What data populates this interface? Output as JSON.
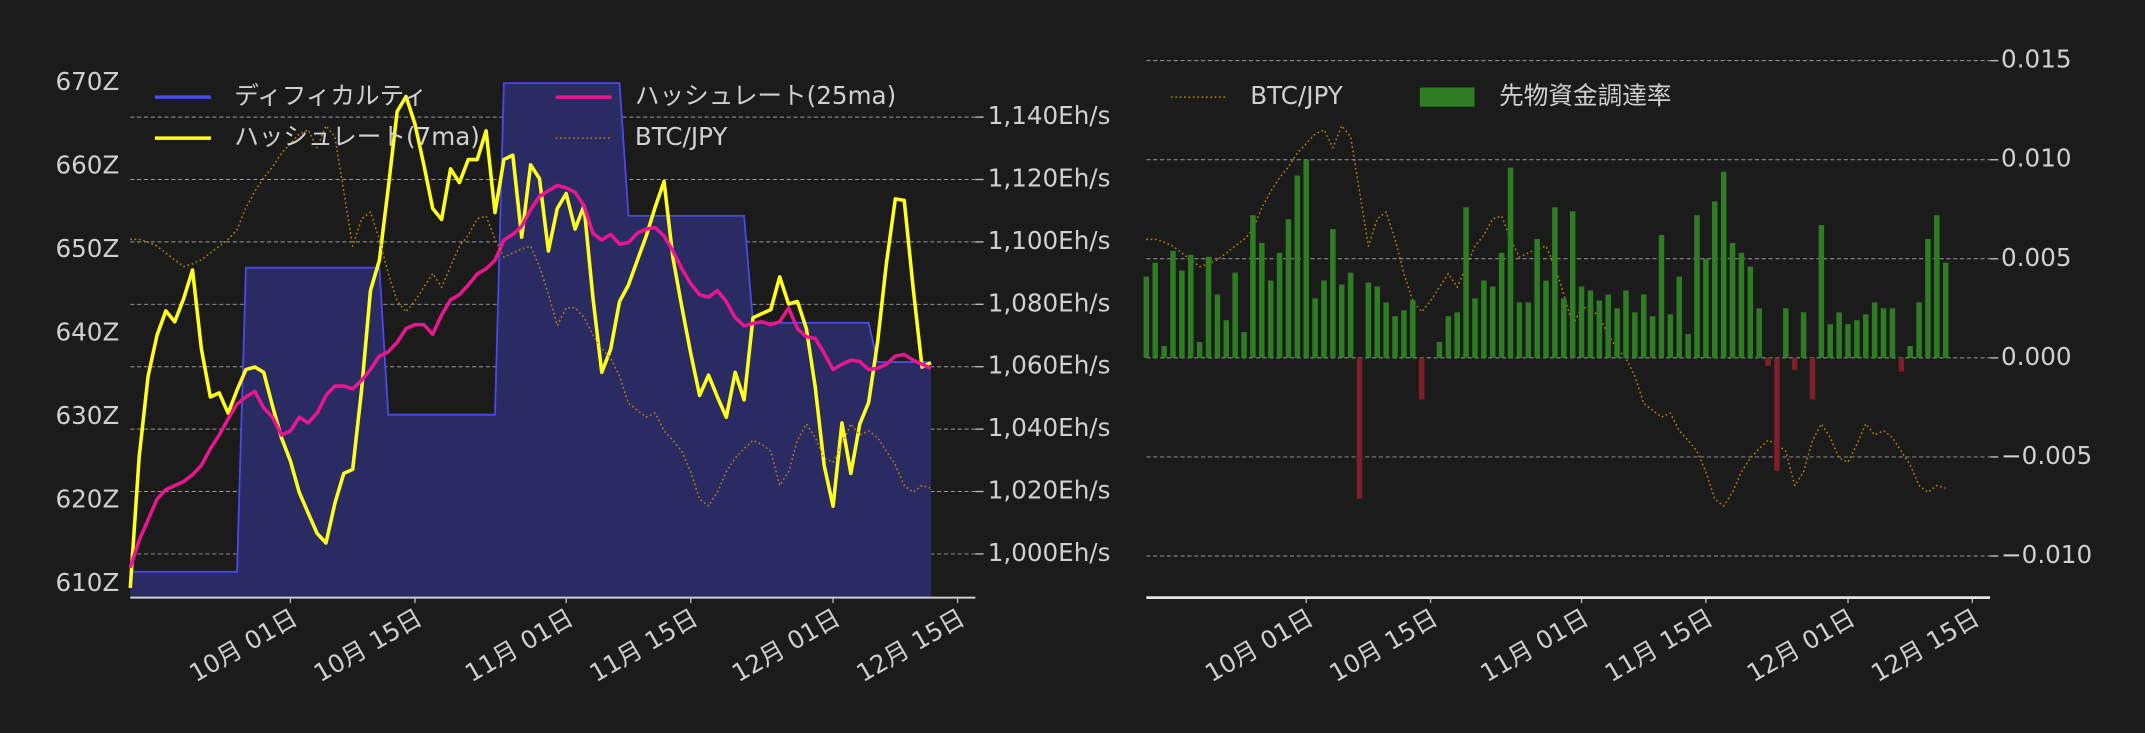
{
  "chart_data": [
    {
      "type": "line",
      "x": [
        "09-13",
        "09-14",
        "09-15",
        "09-16",
        "09-17",
        "09-18",
        "09-19",
        "09-20",
        "09-21",
        "09-22",
        "09-23",
        "09-24",
        "09-25",
        "09-26",
        "09-27",
        "09-28",
        "09-29",
        "09-30",
        "10-01",
        "10-02",
        "10-03",
        "10-04",
        "10-05",
        "10-06",
        "10-07",
        "10-08",
        "10-09",
        "10-10",
        "10-11",
        "10-12",
        "10-13",
        "10-14",
        "10-15",
        "10-16",
        "10-17",
        "10-18",
        "10-19",
        "10-20",
        "10-21",
        "10-22",
        "10-23",
        "10-24",
        "10-25",
        "10-26",
        "10-27",
        "10-28",
        "10-29",
        "10-30",
        "10-31",
        "11-01",
        "11-02",
        "11-03",
        "11-04",
        "11-05",
        "11-06",
        "11-07",
        "11-08",
        "11-09",
        "11-10",
        "11-11",
        "11-12",
        "11-13",
        "11-14",
        "11-15",
        "11-16",
        "11-17",
        "11-18",
        "11-19",
        "11-20",
        "11-21",
        "11-22",
        "11-23",
        "11-24",
        "11-25",
        "11-26",
        "11-27",
        "11-28",
        "11-29",
        "11-30",
        "12-01",
        "12-02",
        "12-03",
        "12-04",
        "12-05",
        "12-06",
        "12-07",
        "12-08",
        "12-09",
        "12-10",
        "12-11",
        "12-12"
      ],
      "xlim": [
        "09-13",
        "12-17"
      ],
      "xticks": [
        {
          "value": "10-01",
          "label": "10月 01日"
        },
        {
          "value": "10-15",
          "label": "10月 15日"
        },
        {
          "value": "11-01",
          "label": "11月 01日"
        },
        {
          "value": "11-15",
          "label": "11月 15日"
        },
        {
          "value": "12-01",
          "label": "12月 01日"
        },
        {
          "value": "12-15",
          "label": "12月 15日"
        }
      ],
      "ylim": [
        608.4,
        673.4
      ],
      "yticks": [
        {
          "value": 610,
          "label": "610Z"
        },
        {
          "value": 620,
          "label": "620Z"
        },
        {
          "value": 630,
          "label": "630Z"
        },
        {
          "value": 640,
          "label": "640Z"
        },
        {
          "value": 650,
          "label": "650Z"
        },
        {
          "value": 660,
          "label": "660Z"
        },
        {
          "value": 670,
          "label": "670Z"
        }
      ],
      "y2lim": [
        986,
        1160
      ],
      "y2ticks": [
        {
          "value": 1000,
          "label": "1,000Eh/s"
        },
        {
          "value": 1020,
          "label": "1,020Eh/s"
        },
        {
          "value": 1040,
          "label": "1,040Eh/s"
        },
        {
          "value": 1060,
          "label": "1,060Eh/s"
        },
        {
          "value": 1080,
          "label": "1,080Eh/s"
        },
        {
          "value": 1100,
          "label": "1,100Eh/s"
        },
        {
          "value": 1120,
          "label": "1,120Eh/s"
        },
        {
          "value": 1140,
          "label": "1,140Eh/s"
        }
      ],
      "y3lim": [
        2157500,
        3150000
      ],
      "grid": "y2",
      "legend": "upper left",
      "series": [
        {
          "name": "ディフィカルティ",
          "type": "area",
          "color": "#4a4ae6",
          "fill": "#2b2b63",
          "values": [
            611.5,
            611.5,
            611.5,
            611.5,
            611.5,
            611.5,
            611.5,
            611.5,
            611.5,
            611.5,
            611.5,
            611.5,
            611.5,
            647.9,
            647.9,
            647.9,
            647.9,
            647.9,
            647.9,
            647.9,
            647.9,
            647.9,
            647.9,
            647.9,
            647.9,
            647.9,
            647.9,
            647.9,
            647.9,
            630.3,
            630.3,
            630.3,
            630.3,
            630.3,
            630.3,
            630.3,
            630.3,
            630.3,
            630.3,
            630.3,
            630.3,
            630.3,
            670,
            670,
            670,
            670,
            670,
            670,
            670,
            670,
            670,
            670,
            670,
            670,
            670,
            670,
            654.1,
            654.1,
            654.1,
            654.1,
            654.1,
            654.1,
            654.1,
            654.1,
            654.1,
            654.1,
            654.1,
            654.1,
            654.1,
            654.1,
            641.3,
            641.3,
            641.3,
            641.3,
            641.3,
            641.3,
            641.3,
            641.3,
            641.3,
            641.3,
            641.3,
            641.3,
            641.3,
            641.3,
            636.6,
            636.6,
            636.6,
            636.6,
            636.6,
            636.6,
            636.6
          ]
        },
        {
          "name": "ハッシュレート(7ma)",
          "color": "#ffff1e",
          "axis": "y2",
          "values": [
            989.1,
            1031.1,
            1056.9,
            1070.0,
            1077.9,
            1074.4,
            1081.8,
            1091.0,
            1065.6,
            1050.3,
            1051.6,
            1045.1,
            1052.5,
            1059.1,
            1059.9,
            1058.2,
            1047.3,
            1037.2,
            1029.8,
            1019.7,
            1013.1,
            1006.6,
            1003.5,
            1016.2,
            1025.8,
            1027.1,
            1052.5,
            1084.4,
            1094.1,
            1117.3,
            1141.8,
            1146.6,
            1137.8,
            1124.7,
            1110.7,
            1107.2,
            1123.4,
            1119.0,
            1126.4,
            1126.4,
            1135.6,
            1109.4,
            1126.4,
            1127.8,
            1101.5,
            1124.7,
            1120.3,
            1097.1,
            1110.7,
            1115.5,
            1104.1,
            1111.6,
            1082.3,
            1058.2,
            1065.6,
            1080.9,
            1086.2,
            1094.1,
            1101.9,
            1111.1,
            1119.4,
            1094.9,
            1079.2,
            1064.3,
            1050.8,
            1057.3,
            1050.3,
            1043.8,
            1058.2,
            1049.4,
            1075.7,
            1077.0,
            1078.3,
            1088.8,
            1080.1,
            1080.9,
            1072.2,
            1053.4,
            1028.4,
            1015.3,
            1042.0,
            1025.8,
            1041.6,
            1048.6,
            1067.8,
            1093.2,
            1113.8,
            1113.3,
            1085.3,
            1059.9,
            1061.3
          ]
        },
        {
          "name": "ハッシュレート(25ma)",
          "color": "#e8178f",
          "axis": "y2",
          "values": [
            995.6,
            1004.4,
            1010.9,
            1017.5,
            1020.6,
            1021.9,
            1023.2,
            1025.4,
            1028.4,
            1033.7,
            1038.1,
            1043.3,
            1048.1,
            1050.3,
            1052.1,
            1046.8,
            1043.8,
            1038.1,
            1039.4,
            1043.8,
            1042.0,
            1045.1,
            1050.8,
            1053.8,
            1053.8,
            1052.9,
            1055.6,
            1059.1,
            1063.4,
            1064.8,
            1067.8,
            1072.2,
            1073.5,
            1073.5,
            1070.4,
            1076.6,
            1081.4,
            1083.1,
            1086.2,
            1089.7,
            1091.4,
            1094.1,
            1100.6,
            1102.4,
            1105.0,
            1110.3,
            1114.6,
            1116.4,
            1118.1,
            1117.3,
            1115.9,
            1111.6,
            1102.8,
            1100.6,
            1102.4,
            1099.3,
            1099.8,
            1102.8,
            1104.1,
            1104.6,
            1101.9,
            1097.1,
            1091.4,
            1086.6,
            1083.1,
            1082.3,
            1084.4,
            1080.9,
            1075.7,
            1073.1,
            1073.9,
            1074.4,
            1073.5,
            1074.4,
            1078.8,
            1072.2,
            1069.6,
            1069.1,
            1064.3,
            1059.1,
            1060.8,
            1062.1,
            1061.7,
            1059.1,
            1059.5,
            1060.8,
            1063.4,
            1063.9,
            1062.1,
            1060.8,
            1059.5
          ]
        },
        {
          "name": "BTC/JPY",
          "color": "#b8860b",
          "dash": "dotted",
          "axis": "y3",
          "values": [
            2812500,
            2812500,
            2807500,
            2800000,
            2787500,
            2775000,
            2762500,
            2767500,
            2775000,
            2787500,
            2800000,
            2812500,
            2830000,
            2870000,
            2900000,
            2925000,
            2945000,
            2970000,
            2987500,
            3005000,
            3012500,
            2980000,
            3020000,
            3000000,
            2900000,
            2800000,
            2850000,
            2862500,
            2812500,
            2750000,
            2700000,
            2680000,
            2700000,
            2725000,
            2750000,
            2725000,
            2762500,
            2800000,
            2820000,
            2850000,
            2855000,
            2812500,
            2780000,
            2787500,
            2795000,
            2800000,
            2762500,
            2712500,
            2655000,
            2687500,
            2687500,
            2670000,
            2637500,
            2612500,
            2595000,
            2562500,
            2512500,
            2500000,
            2487500,
            2495000,
            2462500,
            2445000,
            2425000,
            2387500,
            2337500,
            2325000,
            2350000,
            2387500,
            2412500,
            2430000,
            2445000,
            2437500,
            2425000,
            2362500,
            2387500,
            2445000,
            2475000,
            2450000,
            2412500,
            2405000,
            2437500,
            2475000,
            2455000,
            2462500,
            2450000,
            2425000,
            2400000,
            2362500,
            2350000,
            2362500,
            2357500
          ]
        }
      ]
    },
    {
      "type": "bar",
      "x": [
        "09-13",
        "09-14",
        "09-15",
        "09-16",
        "09-17",
        "09-18",
        "09-19",
        "09-20",
        "09-21",
        "09-22",
        "09-23",
        "09-24",
        "09-25",
        "09-26",
        "09-27",
        "09-28",
        "09-29",
        "09-30",
        "10-01",
        "10-02",
        "10-03",
        "10-04",
        "10-05",
        "10-06",
        "10-07",
        "10-08",
        "10-09",
        "10-10",
        "10-11",
        "10-12",
        "10-13",
        "10-14",
        "10-15",
        "10-16",
        "10-17",
        "10-18",
        "10-19",
        "10-20",
        "10-21",
        "10-22",
        "10-23",
        "10-24",
        "10-25",
        "10-26",
        "10-27",
        "10-28",
        "10-29",
        "10-30",
        "10-31",
        "11-01",
        "11-02",
        "11-03",
        "11-04",
        "11-05",
        "11-06",
        "11-07",
        "11-08",
        "11-09",
        "11-10",
        "11-11",
        "11-12",
        "11-13",
        "11-14",
        "11-15",
        "11-16",
        "11-17",
        "11-18",
        "11-19",
        "11-20",
        "11-21",
        "11-22",
        "11-23",
        "11-24",
        "11-25",
        "11-26",
        "11-27",
        "11-28",
        "11-29",
        "11-30",
        "12-01",
        "12-02",
        "12-03",
        "12-04",
        "12-05",
        "12-06",
        "12-07",
        "12-08",
        "12-09",
        "12-10",
        "12-11",
        "12-12"
      ],
      "xlim": [
        "09-13",
        "12-17"
      ],
      "xticks": [
        {
          "value": "10-01",
          "label": "10月 01日"
        },
        {
          "value": "10-15",
          "label": "10月 15日"
        },
        {
          "value": "11-01",
          "label": "11月 01日"
        },
        {
          "value": "11-15",
          "label": "11月 15日"
        },
        {
          "value": "12-01",
          "label": "12月 01日"
        },
        {
          "value": "12-15",
          "label": "12月 15日"
        }
      ],
      "ylim": [
        -0.0121,
        0.0153
      ],
      "yticks": [
        {
          "value": -0.01,
          "label": "−0.010"
        },
        {
          "value": -0.005,
          "label": "−0.005"
        },
        {
          "value": 0,
          "label": "0.000"
        },
        0.005,
        {
          "value": 0.01,
          "label": "0.010"
        },
        0.015
      ],
      "y_side": "right",
      "y2lim": [
        2157500,
        3150000
      ],
      "grid": "y",
      "legend": "upper left",
      "series": [
        {
          "name": "BTC/JPY",
          "type": "line",
          "color": "#b8860b",
          "dash": "dotted",
          "axis": "y2",
          "values": [
            2812500,
            2812500,
            2807500,
            2800000,
            2787500,
            2775000,
            2762500,
            2767500,
            2775000,
            2787500,
            2800000,
            2812500,
            2830000,
            2870000,
            2900000,
            2925000,
            2945000,
            2970000,
            2987500,
            3005000,
            3012500,
            2980000,
            3020000,
            3000000,
            2900000,
            2800000,
            2850000,
            2862500,
            2812500,
            2750000,
            2700000,
            2680000,
            2700000,
            2725000,
            2750000,
            2725000,
            2762500,
            2800000,
            2820000,
            2850000,
            2855000,
            2812500,
            2780000,
            2787500,
            2795000,
            2800000,
            2762500,
            2712500,
            2655000,
            2687500,
            2687500,
            2670000,
            2637500,
            2612500,
            2595000,
            2562500,
            2512500,
            2500000,
            2487500,
            2495000,
            2462500,
            2445000,
            2425000,
            2387500,
            2337500,
            2325000,
            2350000,
            2387500,
            2412500,
            2430000,
            2445000,
            2437500,
            2425000,
            2362500,
            2387500,
            2445000,
            2475000,
            2450000,
            2412500,
            2405000,
            2437500,
            2475000,
            2455000,
            2462500,
            2450000,
            2425000,
            2400000,
            2362500,
            2350000,
            2362500,
            2357500
          ]
        },
        {
          "name": "先物資金調達率",
          "type": "bar",
          "color": "#2e7d22",
          "negative_color": "#7d2028",
          "values": [
            0.0041,
            0.0048,
            0.0006,
            0.0054,
            0.0044,
            0.0052,
            0.0008,
            0.0051,
            0.0032,
            0.0019,
            0.0043,
            0.0013,
            0.0072,
            0.0058,
            0.0039,
            0.0053,
            0.007,
            0.0092,
            0.01,
            0.003,
            0.0039,
            0.0065,
            0.0037,
            0.0043,
            -0.0071,
            0.0038,
            0.0036,
            0.0028,
            0.0021,
            0.0024,
            0.0029,
            -0.0021,
            0,
            0.0008,
            0.0021,
            0.0023,
            0.0076,
            0.003,
            0.0039,
            0.0036,
            0.0053,
            0.0096,
            0.0028,
            0.0028,
            0.006,
            0.0039,
            0.0076,
            0.003,
            0.0074,
            0.0036,
            0.0034,
            0.0029,
            0.0032,
            0.0025,
            0.0034,
            0.0023,
            0.0032,
            0.0021,
            0.0062,
            0.0022,
            0.0041,
            0.0012,
            0.0072,
            0.005,
            0.0079,
            0.0094,
            0.0058,
            0.0053,
            0.0046,
            0.0025,
            -0.0004,
            -0.0057,
            0.0025,
            -0.0006,
            0.0023,
            -0.0021,
            0.0067,
            0.0017,
            0.0023,
            0.0017,
            0.0019,
            0.0022,
            0.0028,
            0.0025,
            0.0025,
            -0.0007,
            0.0006,
            0.0028,
            0.006,
            0.0072,
            0.0048
          ]
        }
      ]
    }
  ]
}
